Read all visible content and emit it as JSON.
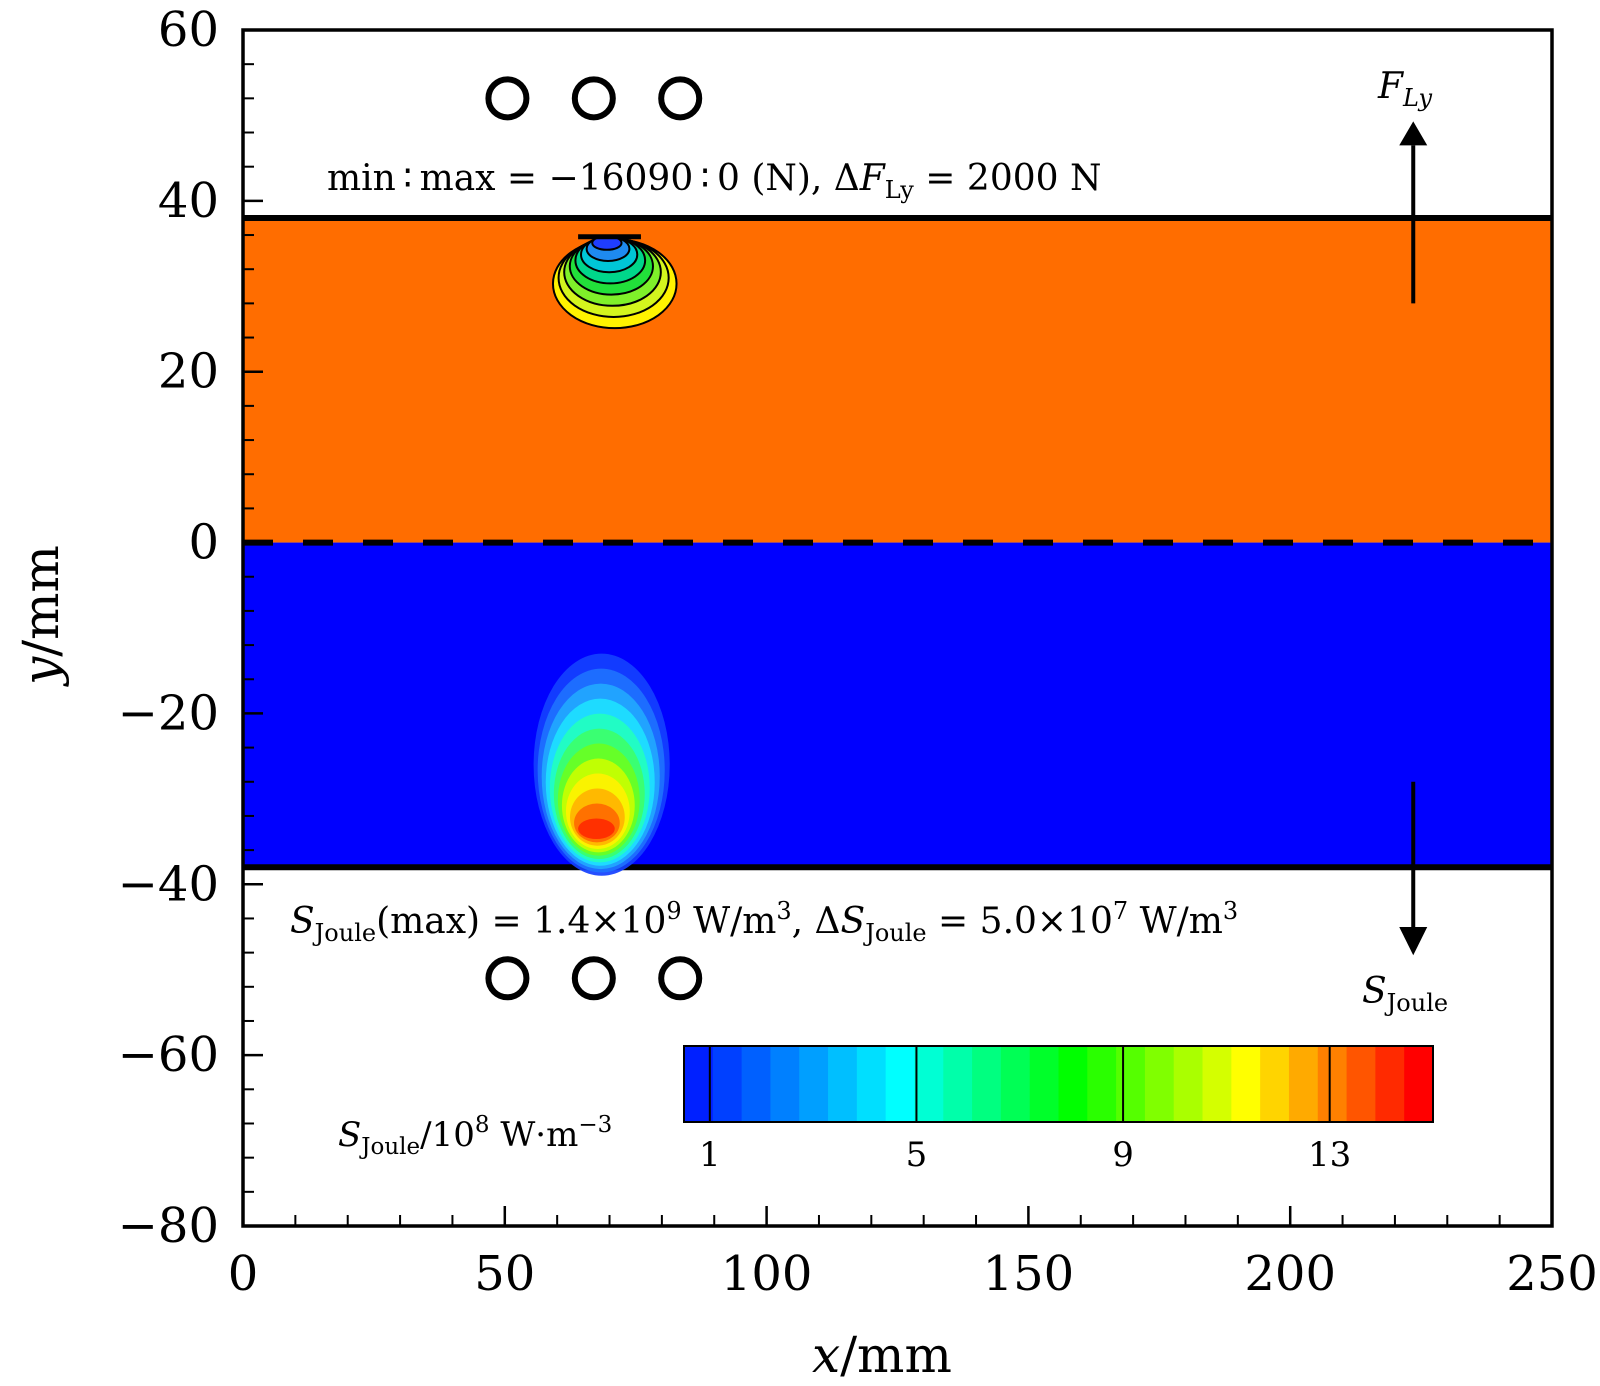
{
  "chart_data": {
    "type": "contour",
    "xlabel_var": "x",
    "ylabel_var": "y",
    "axis_unit": "/mm",
    "xlim": [
      0,
      250
    ],
    "ylim": [
      -80,
      60
    ],
    "xticks": [
      0,
      50,
      100,
      150,
      200,
      250
    ],
    "yticks": [
      60,
      40,
      20,
      0,
      -20,
      -40,
      -60,
      -80
    ],
    "x_tick_labels": [
      "0",
      "50",
      "100",
      "150",
      "200",
      "250"
    ],
    "y_tick_labels": [
      "60",
      "40",
      "20",
      "0",
      "−20",
      "−40",
      "−60",
      "−80"
    ],
    "grid": false,
    "upper_region": {
      "y_range": [
        0,
        38
      ],
      "color": "#ff6d00"
    },
    "lower_region": {
      "y_range": [
        -38,
        0
      ],
      "color": "#0000ff"
    },
    "plate_boundaries_y": [
      38,
      -38
    ],
    "conductors_upper": [
      {
        "x": 50.5,
        "y": 52
      },
      {
        "x": 67,
        "y": 52
      },
      {
        "x": 83.5,
        "y": 52
      }
    ],
    "conductors_lower": [
      {
        "x": 50.5,
        "y": -51
      },
      {
        "x": 67,
        "y": -51
      },
      {
        "x": 83.5,
        "y": -51
      }
    ],
    "force_contour": {
      "center": {
        "x": 70,
        "y": 30.5
      },
      "levels": [
        -2000,
        -4000,
        -6000,
        -8000,
        -10000,
        -12000,
        -14000,
        -16000
      ],
      "fill_colors": [
        "#fff200",
        "#d4f51e",
        "#7ff02a",
        "#22e03a",
        "#00d68a",
        "#00c6d6",
        "#1e8af0",
        "#1f3dff"
      ]
    },
    "joule_hotspot": {
      "center": {
        "x": 68,
        "y": -33
      },
      "fill_colors": [
        "#1440ff",
        "#1e72ff",
        "#22a8ff",
        "#1ee0ff",
        "#22ffc0",
        "#3dff6a",
        "#6aff22",
        "#c8ff00",
        "#fff200",
        "#ffb400",
        "#ff6a00",
        "#ff2a00"
      ]
    },
    "annotation_force": {
      "text_1": "min ∶ max = −16090 ∶ 0 (N), Δ",
      "F": "F",
      "sub": "Ly",
      "text_2": " = 2000 N"
    },
    "annotation_joule": {
      "S": "S",
      "sub": "Joule",
      "text_1": "(max) = 1.4×10",
      "exp1": "9",
      "text_2": " W/m",
      "exp2": "3",
      "text_3": ", Δ",
      "text_4": " = 5.0×10",
      "exp3": "7",
      "text_5": " W/m",
      "exp4": "3"
    },
    "arrow_force_label": {
      "F": "F",
      "sub": "Ly"
    },
    "arrow_joule_label": {
      "S": "S",
      "sub": "Joule"
    },
    "colorbar": {
      "label_S": "S",
      "label_sub": "Joule",
      "label_rest": "/10",
      "label_exp": "8",
      "label_unit": " W·m",
      "label_unit_exp": "−3",
      "range": [
        0.5,
        15.0
      ],
      "ticks": [
        1,
        5,
        9,
        13
      ],
      "tick_labels": [
        "1",
        "5",
        "9",
        "13"
      ],
      "colors": [
        "#0020ff",
        "#0040ff",
        "#0060ff",
        "#0080ff",
        "#009fff",
        "#00bfff",
        "#00dfff",
        "#00ffff",
        "#00ffd4",
        "#00ffaa",
        "#00ff80",
        "#00ff55",
        "#00ff2a",
        "#00ff00",
        "#2aff00",
        "#55ff00",
        "#80ff00",
        "#aaff00",
        "#d4ff00",
        "#ffff00",
        "#ffd400",
        "#ffaa00",
        "#ff8000",
        "#ff5500",
        "#ff2a00",
        "#ff0000"
      ]
    }
  }
}
